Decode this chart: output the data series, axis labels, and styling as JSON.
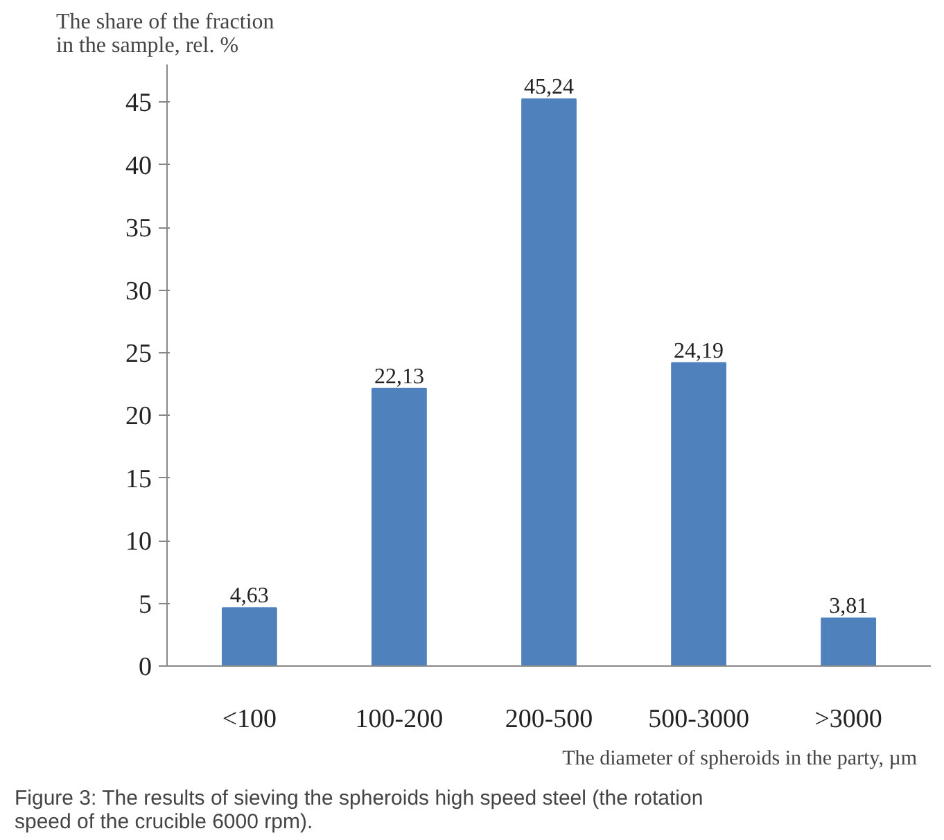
{
  "chart_data": {
    "type": "bar",
    "ylabel": "The share of the fraction in the sample, rel. %",
    "xlabel": "The diameter of spheroids in the party, µm",
    "categories": [
      "<100",
      "100-200",
      "200-500",
      "500-3000",
      ">3000"
    ],
    "values": [
      4.63,
      22.13,
      45.24,
      24.19,
      3.81
    ],
    "value_labels": [
      "4,63",
      "22,13",
      "45,24",
      "24,19",
      "3,81"
    ],
    "color": "#4f81bd",
    "ylim": [
      0,
      48
    ],
    "yticks": [
      0,
      5,
      10,
      15,
      20,
      25,
      30,
      35,
      40,
      45
    ],
    "grid": false,
    "annotations": [
      "Figure 3: The results of sieving the spheroids high speed steel (the rotation speed of the crucible 6000 rpm)."
    ]
  }
}
